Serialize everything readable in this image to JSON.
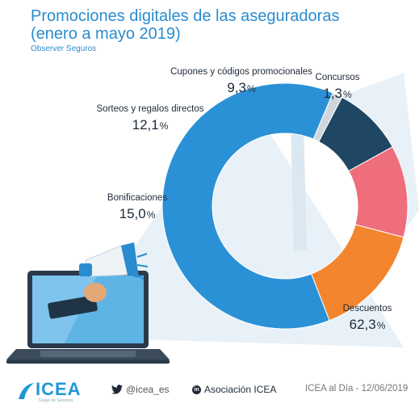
{
  "header": {
    "title": "Promociones digitales de las aseguradoras (enero a mayo 2019)",
    "subtitle": "Observer Seguros"
  },
  "chart_data": {
    "type": "pie",
    "variant": "donut",
    "start_angle_deg": 23,
    "direction": "counterclockwise",
    "slices": [
      {
        "label": "Descuentos",
        "value": 62.3,
        "value_text": "62,3",
        "unit": "%",
        "color": "#2a91d6"
      },
      {
        "label": "Bonificaciones",
        "value": 15.0,
        "value_text": "15,0",
        "unit": "%",
        "color": "#f2852e"
      },
      {
        "label": "Sorteos y regalos directos",
        "value": 12.1,
        "value_text": "12,1",
        "unit": "%",
        "color": "#ef6e7b"
      },
      {
        "label": "Cupones y códigos promocionales",
        "value": 9.3,
        "value_text": "9,3",
        "unit": "%",
        "color": "#1f4663"
      },
      {
        "label": "Concursos",
        "value": 1.3,
        "value_text": "1,3",
        "unit": "%",
        "color": "#cfd7dc"
      }
    ]
  },
  "footer": {
    "logo_text": "ICEA",
    "logo_tagline": "Grupo de Servicios",
    "twitter": "@icea_es",
    "linkedin": "Asociación ICEA",
    "source": "ICEA al Día - 12/06/2019",
    "brand_color": "#1f97d5"
  },
  "decor": {
    "illustration": "laptop-megaphone-illustration",
    "ray_color": "#e4eef5"
  }
}
